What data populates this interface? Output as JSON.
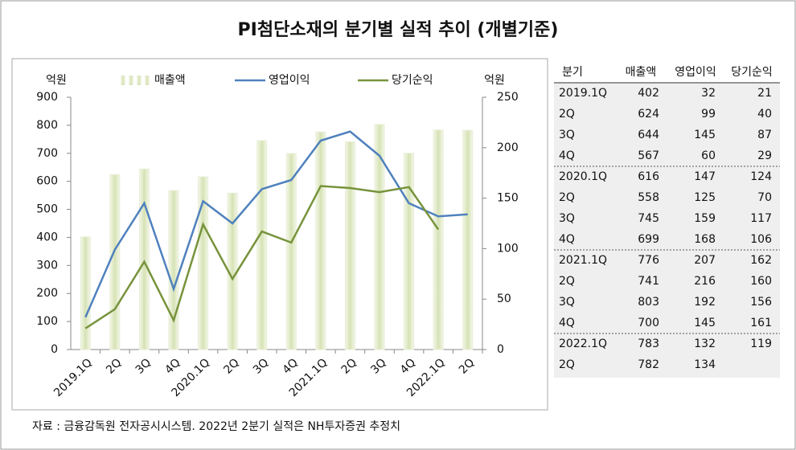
{
  "chart_data": {
    "type": "bar_line",
    "title": "PI첨단소재의 분기별 실적 추이 (개별기준)",
    "y_label": "억원",
    "y2_label": "억원",
    "categories": [
      "2019.1Q",
      "2Q",
      "3Q",
      "4Q",
      "2020.1Q",
      "2Q",
      "3Q",
      "4Q",
      "2021.1Q",
      "2Q",
      "3Q",
      "4Q",
      "2022.1Q",
      "2Q"
    ],
    "series": [
      {
        "name": "매출액",
        "kind": "bar",
        "color": "#dfe8c4",
        "values": [
          402,
          624,
          644,
          567,
          616,
          558,
          745,
          699,
          776,
          741,
          803,
          700,
          783,
          782
        ]
      },
      {
        "name": "영업이익",
        "kind": "line",
        "axis": "y2",
        "color": "#4f81bd",
        "values": [
          32,
          99,
          145,
          60,
          147,
          125,
          159,
          168,
          207,
          216,
          192,
          145,
          132,
          134
        ]
      },
      {
        "name": "당기순익",
        "kind": "line",
        "axis": "y2",
        "color": "#77933c",
        "values": [
          21,
          40,
          87,
          29,
          124,
          70,
          117,
          106,
          162,
          160,
          156,
          161,
          119,
          null
        ]
      }
    ],
    "ylim": [
      0,
      900
    ],
    "yticks": [
      0,
      100,
      200,
      300,
      400,
      500,
      600,
      700,
      800,
      900
    ],
    "y2lim": [
      0,
      250
    ],
    "y2ticks": [
      0,
      50,
      100,
      150,
      200,
      250
    ],
    "grid": false,
    "legend": "top"
  },
  "table": {
    "header": [
      "분기",
      "매출액",
      "영업이익",
      "당기순익"
    ],
    "rows": [
      [
        "2019.1Q",
        "402",
        "32",
        "21"
      ],
      [
        "2Q",
        "624",
        "99",
        "40"
      ],
      [
        "3Q",
        "644",
        "145",
        "87"
      ],
      [
        "4Q",
        "567",
        "60",
        "29"
      ],
      [
        "2020.1Q",
        "616",
        "147",
        "124"
      ],
      [
        "2Q",
        "558",
        "125",
        "70"
      ],
      [
        "3Q",
        "745",
        "159",
        "117"
      ],
      [
        "4Q",
        "699",
        "168",
        "106"
      ],
      [
        "2021.1Q",
        "776",
        "207",
        "162"
      ],
      [
        "2Q",
        "741",
        "216",
        "160"
      ],
      [
        "3Q",
        "803",
        "192",
        "156"
      ],
      [
        "4Q",
        "700",
        "145",
        "161"
      ],
      [
        "2022.1Q",
        "783",
        "132",
        "119"
      ],
      [
        "2Q",
        "782",
        "134"
      ]
    ]
  },
  "source": "자료 : 금융감독원 전자공시시스템. 2022년 2분기 실적은 NH투자증권 추정치"
}
